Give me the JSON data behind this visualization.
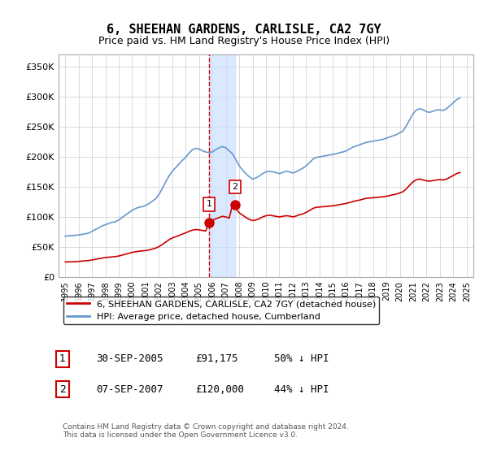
{
  "title": "6, SHEEHAN GARDENS, CARLISLE, CA2 7GY",
  "subtitle": "Price paid vs. HM Land Registry's House Price Index (HPI)",
  "ylabel_ticks": [
    "£0",
    "£50K",
    "£100K",
    "£150K",
    "£200K",
    "£250K",
    "£300K",
    "£350K"
  ],
  "ytick_values": [
    0,
    50000,
    100000,
    150000,
    200000,
    250000,
    300000,
    350000
  ],
  "ylim": [
    0,
    370000
  ],
  "xlim_start": 1994.5,
  "xlim_end": 2025.5,
  "sale1_date": 2005.75,
  "sale1_price": 91175,
  "sale2_date": 2007.69,
  "sale2_price": 120000,
  "shade_start": 2005.75,
  "shade_end": 2007.69,
  "red_line_color": "#cc0000",
  "blue_line_color": "#6699cc",
  "shade_color": "#cce0ff",
  "vline_color": "#cc0000",
  "legend_label_red": "6, SHEEHAN GARDENS, CARLISLE, CA2 7GY (detached house)",
  "legend_label_blue": "HPI: Average price, detached house, Cumberland",
  "table_row1": [
    "1",
    "30-SEP-2005",
    "£91,175",
    "50% ↓ HPI"
  ],
  "table_row2": [
    "2",
    "07-SEP-2007",
    "£120,000",
    "44% ↓ HPI"
  ],
  "footer": "Contains HM Land Registry data © Crown copyright and database right 2024.\nThis data is licensed under the Open Government Licence v3.0.",
  "hpi_data": {
    "years": [
      1995,
      1995.25,
      1995.5,
      1995.75,
      1996,
      1996.25,
      1996.5,
      1996.75,
      1997,
      1997.25,
      1997.5,
      1997.75,
      1998,
      1998.25,
      1998.5,
      1998.75,
      1999,
      1999.25,
      1999.5,
      1999.75,
      2000,
      2000.25,
      2000.5,
      2000.75,
      2001,
      2001.25,
      2001.5,
      2001.75,
      2002,
      2002.25,
      2002.5,
      2002.75,
      2003,
      2003.25,
      2003.5,
      2003.75,
      2004,
      2004.25,
      2004.5,
      2004.75,
      2005,
      2005.25,
      2005.5,
      2005.75,
      2006,
      2006.25,
      2006.5,
      2006.75,
      2007,
      2007.25,
      2007.5,
      2007.75,
      2008,
      2008.25,
      2008.5,
      2008.75,
      2009,
      2009.25,
      2009.5,
      2009.75,
      2010,
      2010.25,
      2010.5,
      2010.75,
      2011,
      2011.25,
      2011.5,
      2011.75,
      2012,
      2012.25,
      2012.5,
      2012.75,
      2013,
      2013.25,
      2013.5,
      2013.75,
      2014,
      2014.25,
      2014.5,
      2014.75,
      2015,
      2015.25,
      2015.5,
      2015.75,
      2016,
      2016.25,
      2016.5,
      2016.75,
      2017,
      2017.25,
      2017.5,
      2017.75,
      2018,
      2018.25,
      2018.5,
      2018.75,
      2019,
      2019.25,
      2019.5,
      2019.75,
      2020,
      2020.25,
      2020.5,
      2020.75,
      2021,
      2021.25,
      2021.5,
      2021.75,
      2022,
      2022.25,
      2022.5,
      2022.75,
      2023,
      2023.25,
      2023.5,
      2023.75,
      2024,
      2024.25,
      2024.5
    ],
    "values": [
      68000,
      68500,
      69000,
      69500,
      70000,
      71000,
      72000,
      73000,
      76000,
      79000,
      82000,
      85000,
      87000,
      89000,
      91000,
      92000,
      95000,
      99000,
      103000,
      107000,
      111000,
      114000,
      116000,
      117000,
      119000,
      122000,
      126000,
      130000,
      137000,
      147000,
      158000,
      168000,
      176000,
      182000,
      188000,
      194000,
      199000,
      206000,
      212000,
      214000,
      213000,
      210000,
      208000,
      207000,
      208000,
      212000,
      215000,
      217000,
      215000,
      210000,
      205000,
      195000,
      185000,
      178000,
      172000,
      167000,
      163000,
      165000,
      168000,
      172000,
      175000,
      176000,
      175000,
      174000,
      172000,
      174000,
      176000,
      175000,
      173000,
      175000,
      178000,
      181000,
      185000,
      190000,
      196000,
      199000,
      200000,
      201000,
      202000,
      203000,
      204000,
      205000,
      207000,
      208000,
      210000,
      213000,
      216000,
      218000,
      220000,
      222000,
      224000,
      225000,
      226000,
      227000,
      228000,
      229000,
      231000,
      233000,
      235000,
      237000,
      240000,
      243000,
      252000,
      262000,
      272000,
      278000,
      280000,
      278000,
      275000,
      274000,
      276000,
      278000,
      278000,
      277000,
      280000,
      285000,
      290000,
      295000,
      298000
    ]
  },
  "red_data": {
    "years": [
      1995,
      1995.25,
      1995.5,
      1995.75,
      1996,
      1996.25,
      1996.5,
      1996.75,
      1997,
      1997.25,
      1997.5,
      1997.75,
      1998,
      1998.25,
      1998.5,
      1998.75,
      1999,
      1999.25,
      1999.5,
      1999.75,
      2000,
      2000.25,
      2000.5,
      2000.75,
      2001,
      2001.25,
      2001.5,
      2001.75,
      2002,
      2002.25,
      2002.5,
      2002.75,
      2003,
      2003.25,
      2003.5,
      2003.75,
      2004,
      2004.25,
      2004.5,
      2004.75,
      2005,
      2005.25,
      2005.5,
      2005.75,
      2006,
      2006.25,
      2006.5,
      2006.75,
      2007,
      2007.25,
      2007.5,
      2007.75,
      2008,
      2008.25,
      2008.5,
      2008.75,
      2009,
      2009.25,
      2009.5,
      2009.75,
      2010,
      2010.25,
      2010.5,
      2010.75,
      2011,
      2011.25,
      2011.5,
      2011.75,
      2012,
      2012.25,
      2012.5,
      2012.75,
      2013,
      2013.25,
      2013.5,
      2013.75,
      2014,
      2014.25,
      2014.5,
      2014.75,
      2015,
      2015.25,
      2015.5,
      2015.75,
      2016,
      2016.25,
      2016.5,
      2016.75,
      2017,
      2017.25,
      2017.5,
      2017.75,
      2018,
      2018.25,
      2018.5,
      2018.75,
      2019,
      2019.25,
      2019.5,
      2019.75,
      2020,
      2020.25,
      2020.5,
      2020.75,
      2021,
      2021.25,
      2021.5,
      2021.75,
      2022,
      2022.25,
      2022.5,
      2022.75,
      2023,
      2023.25,
      2023.5,
      2023.75,
      2024,
      2024.25,
      2024.5
    ],
    "values": [
      25000,
      25200,
      25400,
      25600,
      26000,
      26500,
      27000,
      27500,
      28500,
      29500,
      30500,
      31500,
      32500,
      33000,
      33500,
      34000,
      35000,
      36500,
      38000,
      39500,
      41000,
      42000,
      43000,
      43500,
      44000,
      45000,
      46500,
      48000,
      50500,
      54000,
      58000,
      62000,
      65000,
      67000,
      69000,
      71500,
      73500,
      76000,
      78000,
      79000,
      78500,
      77500,
      76500,
      91175,
      94000,
      97000,
      99000,
      101000,
      100000,
      98000,
      120000,
      114000,
      107000,
      103000,
      99000,
      96000,
      94000,
      95000,
      97000,
      100000,
      102000,
      103000,
      102000,
      101000,
      100000,
      101000,
      102000,
      101500,
      100000,
      101500,
      103500,
      105000,
      107500,
      110500,
      114000,
      116000,
      116500,
      117000,
      117500,
      118000,
      118500,
      119500,
      120500,
      121500,
      122500,
      124000,
      125500,
      127000,
      128000,
      129500,
      131000,
      131500,
      132000,
      132500,
      133000,
      133500,
      134500,
      135500,
      137000,
      138000,
      140000,
      142000,
      147000,
      153000,
      158500,
      162000,
      163000,
      161500,
      160000,
      159500,
      160500,
      161500,
      162000,
      161500,
      163000,
      166000,
      169000,
      172000,
      174000
    ]
  }
}
